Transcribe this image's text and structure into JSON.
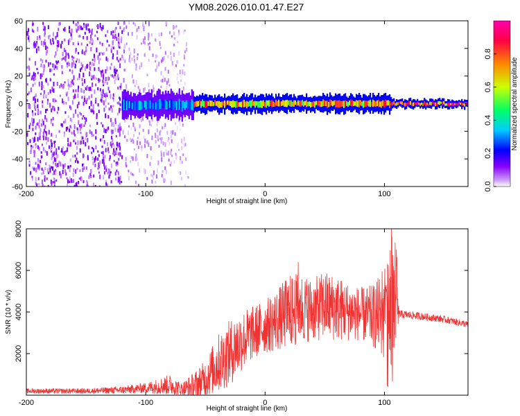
{
  "title": "YM08.2026.010.01.47.E27",
  "chart_data": [
    {
      "type": "heatmap",
      "name": "spectrogram",
      "xlabel": "Height of straight line (km)",
      "ylabel": "Frequency (Hz)",
      "xlim": [
        -200,
        170
      ],
      "ylim": [
        -60,
        60
      ],
      "xticks": [
        -200,
        -100,
        0,
        100
      ],
      "xtick_labels": [
        "-200",
        "-100",
        "0",
        "100"
      ],
      "yticks": [
        -60,
        -40,
        -20,
        0,
        20,
        40,
        60
      ],
      "ytick_labels": [
        "-60",
        "-40",
        "-20",
        "0",
        "20",
        "40",
        "60"
      ],
      "colorbar": {
        "label": "Normalized spectral amplitude",
        "range": [
          0,
          1
        ],
        "ticks": [
          0.0,
          0.2,
          0.4,
          0.6,
          0.8
        ],
        "tick_labels": [
          "0.0",
          "0.2",
          "0.4",
          "0.6",
          "0.8"
        ],
        "colors": [
          "#ffffff",
          "#cc99ff",
          "#8800ff",
          "#0000ff",
          "#00ccff",
          "#00ff66",
          "#ccff00",
          "#ff8800",
          "#ff0044",
          "#ff00aa"
        ]
      },
      "regions": [
        {
          "x": [
            -200,
            -120
          ],
          "freq_spread": [
            -60,
            60
          ],
          "amplitude": 0.1,
          "desc": "broadband noise"
        },
        {
          "x": [
            -120,
            -65
          ],
          "freq_spread": [
            -60,
            60
          ],
          "amplitude": 0.05,
          "desc": "faint noise"
        },
        {
          "x": [
            -120,
            -60
          ],
          "freq_spread": [
            -10,
            8
          ],
          "amplitude": 0.35
        },
        {
          "x": [
            -60,
            105
          ],
          "freq_spread": [
            -6,
            6
          ],
          "amplitude": 0.8
        },
        {
          "x": [
            105,
            170
          ],
          "freq_spread": [
            -3,
            3
          ],
          "amplitude": 0.95
        }
      ]
    },
    {
      "type": "line",
      "name": "snr",
      "xlabel": "Height of straight line (km)",
      "ylabel": "SNR (10 * v/v)",
      "xlim": [
        -200,
        170
      ],
      "ylim": [
        0,
        8000
      ],
      "xticks": [
        -200,
        -100,
        0,
        100
      ],
      "xtick_labels": [
        "-200",
        "-100",
        "0",
        "100"
      ],
      "yticks": [
        2000,
        4000,
        6000,
        8000
      ],
      "ytick_labels": [
        "2000",
        "4000",
        "6000",
        "8000"
      ],
      "color": "#ee3333",
      "envelope": {
        "x": [
          -200,
          -150,
          -120,
          -100,
          -80,
          -70,
          -60,
          -50,
          -40,
          -30,
          -20,
          -10,
          0,
          10,
          20,
          30,
          40,
          50,
          60,
          70,
          80,
          90,
          100,
          105,
          110,
          112,
          130,
          150,
          170
        ],
        "base": [
          200,
          200,
          250,
          350,
          500,
          300,
          400,
          800,
          1500,
          2000,
          2600,
          3000,
          3300,
          3600,
          4000,
          4200,
          4100,
          4300,
          4200,
          4000,
          3900,
          3800,
          3900,
          4000,
          4100,
          3900,
          3800,
          3650,
          3400
        ],
        "amp": [
          120,
          130,
          180,
          250,
          500,
          300,
          700,
          900,
          1400,
          1600,
          1500,
          1300,
          1300,
          1500,
          1800,
          1700,
          1500,
          1700,
          1600,
          1400,
          1300,
          1500,
          2200,
          2800,
          3200,
          200,
          180,
          170,
          160
        ]
      }
    }
  ]
}
